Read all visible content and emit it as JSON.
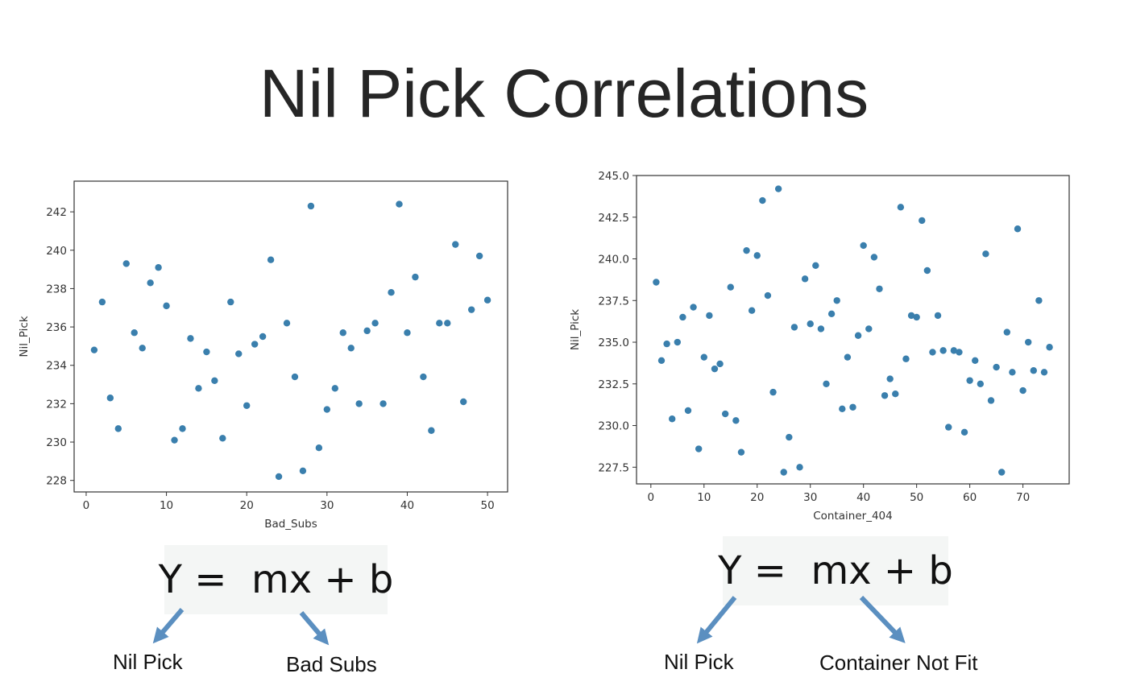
{
  "page": {
    "title": "Nil Pick Correlations",
    "marker_color": "#3a7fad",
    "arrow_color": "#5b8fc0"
  },
  "chart_data": [
    {
      "type": "scatter",
      "xlabel": "Bad_Subs",
      "ylabel": "Nil_Pick",
      "xlim": [
        -1.5,
        52.5
      ],
      "ylim": [
        227.4,
        243.6
      ],
      "xticks": [
        0,
        10,
        20,
        30,
        40,
        50
      ],
      "yticks": [
        228,
        230,
        232,
        234,
        236,
        238,
        240,
        242
      ],
      "ytick_labels": [
        "228",
        "230",
        "232",
        "234",
        "236",
        "238",
        "240",
        "242"
      ],
      "grid": false,
      "x": [
        1,
        2,
        3,
        4,
        5,
        6,
        7,
        8,
        9,
        10,
        11,
        12,
        13,
        14,
        15,
        16,
        17,
        18,
        19,
        20,
        21,
        22,
        23,
        24,
        25,
        26,
        27,
        28,
        29,
        30,
        31,
        32,
        33,
        34,
        35,
        36,
        37,
        38,
        39,
        40,
        41,
        42,
        43,
        44,
        45,
        46,
        47,
        48,
        49,
        50
      ],
      "y": [
        234.8,
        237.3,
        232.3,
        230.7,
        239.3,
        235.7,
        234.9,
        238.3,
        239.1,
        237.1,
        230.1,
        230.7,
        235.4,
        232.8,
        234.7,
        233.2,
        230.2,
        237.3,
        234.6,
        231.9,
        235.1,
        235.5,
        239.5,
        228.2,
        236.2,
        233.4,
        228.5,
        242.3,
        229.7,
        231.7,
        232.8,
        235.7,
        234.9,
        232.0,
        235.8,
        236.2,
        232.0,
        237.8,
        242.4,
        235.7,
        238.6,
        233.4,
        230.6,
        236.2,
        236.2,
        240.3,
        232.1,
        236.9,
        239.7,
        237.4
      ]
    },
    {
      "type": "scatter",
      "xlabel": "Container_404",
      "ylabel": "Nil_Pick",
      "xlim": [
        -2.7,
        78.7
      ],
      "ylim": [
        226.5,
        245.0
      ],
      "xticks": [
        0,
        10,
        20,
        30,
        40,
        50,
        60,
        70
      ],
      "yticks": [
        227.5,
        230.0,
        232.5,
        235.0,
        237.5,
        240.0,
        242.5,
        245.0
      ],
      "ytick_labels": [
        "227.5",
        "230.0",
        "232.5",
        "235.0",
        "237.5",
        "240.0",
        "242.5",
        "245.0"
      ],
      "grid": false,
      "x": [
        1,
        2,
        3,
        4,
        5,
        6,
        7,
        8,
        9,
        10,
        11,
        12,
        13,
        14,
        15,
        16,
        17,
        18,
        19,
        20,
        21,
        22,
        23,
        24,
        25,
        26,
        27,
        28,
        29,
        30,
        31,
        32,
        33,
        34,
        35,
        36,
        37,
        38,
        39,
        40,
        41,
        42,
        43,
        44,
        45,
        46,
        47,
        48,
        49,
        50,
        51,
        52,
        53,
        54,
        55,
        56,
        57,
        58,
        59,
        60,
        61,
        62,
        63,
        64,
        65,
        66,
        67,
        68,
        69,
        70,
        71,
        72,
        73,
        74,
        75
      ],
      "y": [
        238.6,
        233.9,
        234.9,
        230.4,
        235.0,
        236.5,
        230.9,
        237.1,
        228.6,
        234.1,
        236.6,
        233.4,
        233.7,
        230.7,
        238.3,
        230.3,
        228.4,
        240.5,
        236.9,
        240.2,
        243.5,
        237.8,
        232.0,
        244.2,
        227.2,
        229.3,
        235.9,
        227.5,
        238.8,
        236.1,
        239.6,
        235.8,
        232.5,
        236.7,
        237.5,
        231.0,
        234.1,
        231.1,
        235.4,
        240.8,
        235.8,
        240.1,
        238.2,
        231.8,
        232.8,
        231.9,
        243.1,
        234.0,
        236.6,
        236.5,
        242.3,
        239.3,
        234.4,
        236.6,
        234.5,
        229.9,
        234.5,
        234.4,
        229.6,
        232.7,
        233.9,
        232.5,
        240.3,
        231.5,
        233.5,
        227.2,
        235.6,
        233.2,
        241.8,
        232.1,
        235.0,
        233.3,
        237.5,
        233.2,
        234.7
      ]
    }
  ],
  "formulas": [
    {
      "text": "Y =  mx + b",
      "left_label": "Nil Pick",
      "right_label": "Bad Subs"
    },
    {
      "text": "Y =  mx + b",
      "left_label": "Nil Pick",
      "right_label": "Container Not Fit"
    }
  ]
}
